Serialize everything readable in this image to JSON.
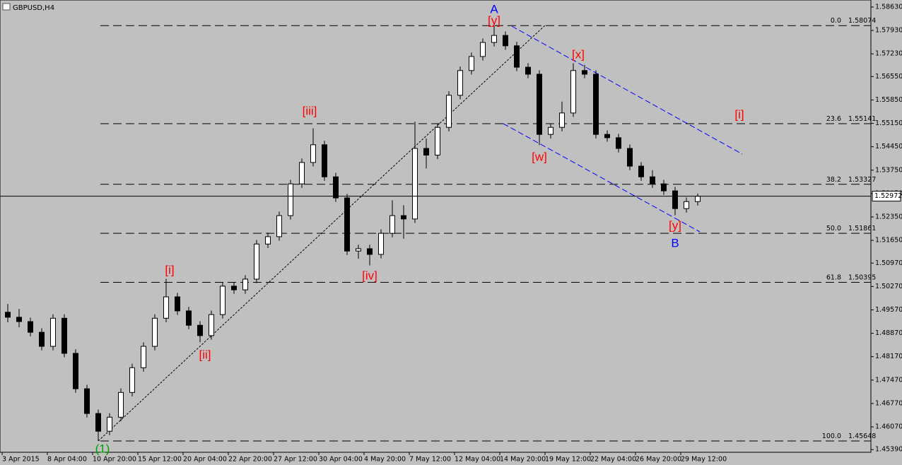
{
  "chart_data": {
    "type": "candlestick",
    "title": "GBPUSD,H4",
    "categories": [
      "3 Apr 2015",
      null,
      null,
      null,
      "8 Apr 04:00",
      null,
      null,
      null,
      "10 Apr 20:00",
      null,
      null,
      null,
      "15 Apr 12:00",
      null,
      null,
      null,
      "20 Apr 04:00",
      null,
      null,
      null,
      "22 Apr 20:00",
      null,
      null,
      null,
      "27 Apr 12:00",
      null,
      null,
      null,
      "30 Apr 04:00",
      null,
      null,
      null,
      "4 May 20:00",
      null,
      null,
      null,
      "7 May 12:00",
      null,
      null,
      null,
      "12 May 04:00",
      null,
      null,
      null,
      "14 May 20:00",
      null,
      null,
      null,
      "19 May 12:00",
      null,
      null,
      null,
      "22 May 04:00",
      null,
      null,
      null,
      "26 May 20:00",
      null,
      null,
      null,
      "29 May 12:00",
      null
    ],
    "open": [
      1.495,
      1.4935,
      1.4922,
      1.489,
      1.4848,
      1.4932,
      1.4827,
      1.4721,
      1.4647,
      1.4594,
      1.4636,
      1.471,
      1.4784,
      1.4848,
      1.4932,
      1.4996,
      1.4954,
      1.4911,
      1.488,
      1.4943,
      1.5028,
      1.5017,
      1.5049,
      1.5154,
      1.5176,
      1.5239,
      1.5334,
      1.5398,
      1.5451,
      1.5355,
      1.5292,
      1.5133,
      1.514,
      1.5123,
      1.5186,
      1.5239,
      1.5229,
      1.544,
      1.542,
      1.5503,
      1.5599,
      1.5673,
      1.5715,
      1.5757,
      1.5778,
      1.5747,
      1.5683,
      1.5662,
      1.5482,
      1.5503,
      1.5546,
      1.5673,
      1.5662,
      1.5482,
      1.5472,
      1.544,
      1.5387,
      1.5355,
      1.5334,
      1.5313,
      1.526,
      1.5281
    ],
    "high": [
      1.4975,
      1.496,
      1.4934,
      1.4902,
      1.4944,
      1.4944,
      1.4839,
      1.4733,
      1.4659,
      1.4648,
      1.4722,
      1.4796,
      1.486,
      1.4944,
      1.505,
      1.5008,
      1.4966,
      1.4923,
      1.4955,
      1.504,
      1.504,
      1.5061,
      1.5166,
      1.5188,
      1.5251,
      1.5346,
      1.541,
      1.55,
      1.5463,
      1.5367,
      1.5304,
      1.5152,
      1.5152,
      1.5198,
      1.5285,
      1.527,
      1.552,
      1.547,
      1.5515,
      1.5611,
      1.5685,
      1.5727,
      1.5769,
      1.5807,
      1.579,
      1.5759,
      1.5695,
      1.5674,
      1.5515,
      1.558,
      1.5695,
      1.569,
      1.5674,
      1.5494,
      1.5484,
      1.5452,
      1.5399,
      1.5375,
      1.5346,
      1.5325,
      1.5293,
      1.5305
    ],
    "low": [
      1.492,
      1.4905,
      1.4878,
      1.4836,
      1.4836,
      1.4815,
      1.4709,
      1.4635,
      1.4565,
      1.4582,
      1.4624,
      1.4698,
      1.4772,
      1.4836,
      1.492,
      1.4942,
      1.4899,
      1.486,
      1.4868,
      1.4931,
      1.5005,
      1.5005,
      1.5037,
      1.5142,
      1.5164,
      1.5227,
      1.5322,
      1.5386,
      1.5343,
      1.528,
      1.5121,
      1.511,
      1.509,
      1.5111,
      1.5174,
      1.517,
      1.5217,
      1.538,
      1.5408,
      1.5491,
      1.5587,
      1.5661,
      1.5703,
      1.5745,
      1.5735,
      1.5671,
      1.565,
      1.545,
      1.547,
      1.5491,
      1.5534,
      1.565,
      1.547,
      1.546,
      1.5428,
      1.5375,
      1.5343,
      1.5322,
      1.5301,
      1.524,
      1.5248,
      1.5269
    ],
    "close": [
      1.4935,
      1.4922,
      1.489,
      1.4848,
      1.4932,
      1.4827,
      1.4721,
      1.4647,
      1.4594,
      1.4636,
      1.471,
      1.4784,
      1.4848,
      1.4932,
      1.4996,
      1.4954,
      1.4911,
      1.488,
      1.4943,
      1.5028,
      1.5017,
      1.5049,
      1.5154,
      1.5176,
      1.5239,
      1.5334,
      1.5398,
      1.5451,
      1.5355,
      1.5292,
      1.5133,
      1.514,
      1.5123,
      1.5186,
      1.5239,
      1.5229,
      1.544,
      1.542,
      1.5503,
      1.5599,
      1.5673,
      1.5715,
      1.5757,
      1.5778,
      1.5747,
      1.5683,
      1.5662,
      1.5482,
      1.5503,
      1.5546,
      1.5673,
      1.5662,
      1.5482,
      1.5472,
      1.544,
      1.5387,
      1.5355,
      1.5334,
      1.5313,
      1.526,
      1.5281,
      1.5297
    ],
    "ylim": [
      1.4531,
      1.5884
    ],
    "yticks": [
      {
        "value": 1.5863,
        "label": "1.58630"
      },
      {
        "value": 1.5793,
        "label": "1.57930"
      },
      {
        "value": 1.5723,
        "label": "1.57230"
      },
      {
        "value": 1.5655,
        "label": "1.56550"
      },
      {
        "value": 1.5585,
        "label": "1.55850"
      },
      {
        "value": 1.5515,
        "label": "1.55150"
      },
      {
        "value": 1.5445,
        "label": "1.54450"
      },
      {
        "value": 1.5375,
        "label": "1.53750"
      },
      {
        "value": 1.5305,
        "label": "1.53050"
      },
      {
        "value": 1.5235,
        "label": "1.52350"
      },
      {
        "value": 1.5165,
        "label": "1.51650"
      },
      {
        "value": 1.5097,
        "label": "1.50970"
      },
      {
        "value": 1.5027,
        "label": "1.50270"
      },
      {
        "value": 1.4957,
        "label": "1.49570"
      },
      {
        "value": 1.4887,
        "label": "1.48870"
      },
      {
        "value": 1.4817,
        "label": "1.48170"
      },
      {
        "value": 1.4747,
        "label": "1.47470"
      },
      {
        "value": 1.4677,
        "label": "1.46770"
      },
      {
        "value": 1.4607,
        "label": "1.46070"
      },
      {
        "value": 1.4539,
        "label": "1.45390"
      }
    ],
    "current_price": 1.52972,
    "fib_levels": [
      {
        "level": "0.0",
        "price": 1.58074
      },
      {
        "level": "23.6",
        "price": 1.55141
      },
      {
        "level": "38.2",
        "price": 1.53327
      },
      {
        "level": "50.0",
        "price": 1.51861
      },
      {
        "level": "61.8",
        "price": 1.50395
      },
      {
        "level": "100.0",
        "price": 1.45648
      }
    ],
    "annotations": [
      {
        "text": "A",
        "color": "#0000ff"
      },
      {
        "text": "[y]",
        "color": "#ff0000"
      },
      {
        "text": "[x]",
        "color": "#ff0000"
      },
      {
        "text": "[i]",
        "color": "#ff0000"
      },
      {
        "text": "[w]",
        "color": "#ff0000"
      },
      {
        "text": "[y]",
        "color": "#ff0000"
      },
      {
        "text": "B",
        "color": "#0000ff"
      },
      {
        "text": "[iii]",
        "color": "#ff0000"
      },
      {
        "text": "[i]",
        "color": "#ff0000"
      },
      {
        "text": "[ii]",
        "color": "#ff0000"
      },
      {
        "text": "[iv]",
        "color": "#ff0000"
      },
      {
        "text": "(1)",
        "color": "#00a000"
      }
    ],
    "background": "#c0c0c0",
    "bull_color": "#ffffff",
    "bear_color": "#000000"
  }
}
